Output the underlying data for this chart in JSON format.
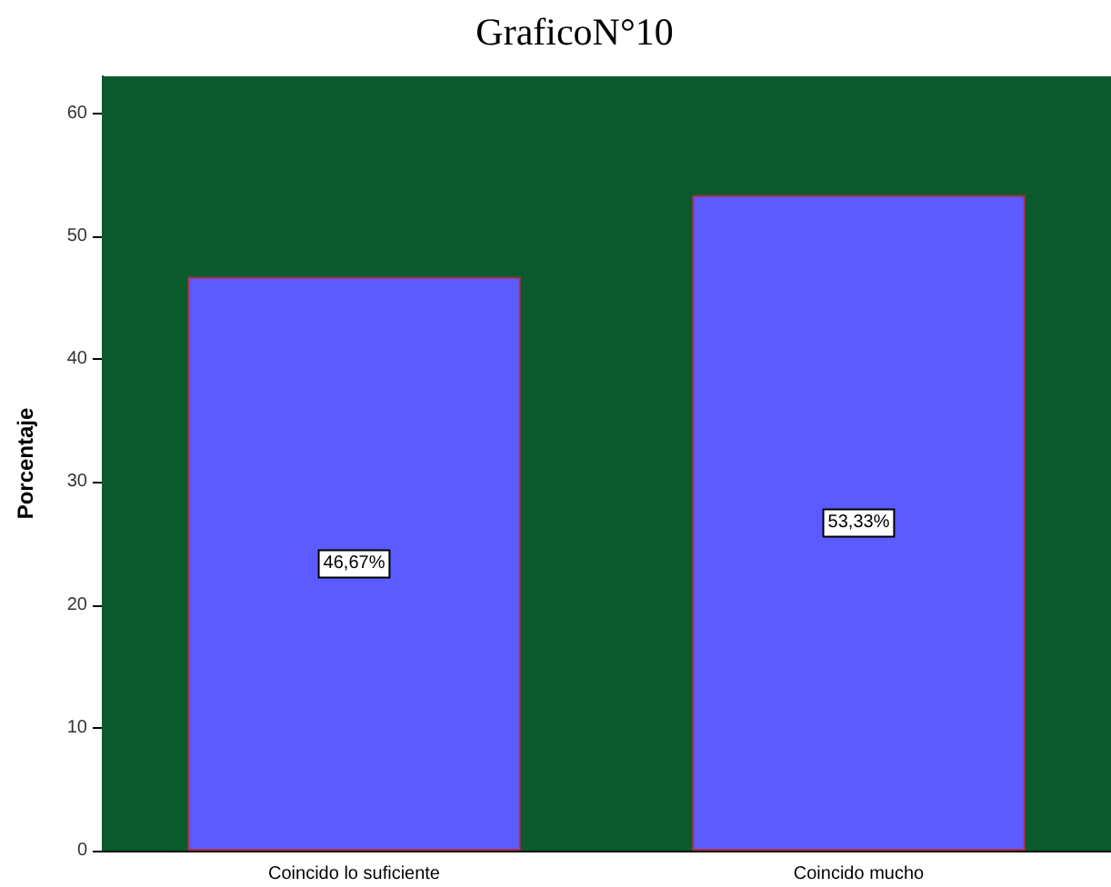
{
  "chart_data": {
    "type": "bar",
    "title": "GraficoN°10",
    "ylabel": "Porcentaje",
    "categories": [
      "Coincido lo suficiente",
      "Coincido mucho"
    ],
    "values": [
      46.67,
      53.33
    ],
    "value_labels": [
      "46,67%",
      "53,33%"
    ],
    "color": "#5b5bff",
    "bands": [
      {
        "axis": "y",
        "from": 0,
        "to": 63,
        "color": "#0b5a2e"
      }
    ],
    "ylim": [
      0,
      63
    ],
    "yticks": [
      0,
      10,
      20,
      30,
      40,
      50,
      60
    ]
  }
}
